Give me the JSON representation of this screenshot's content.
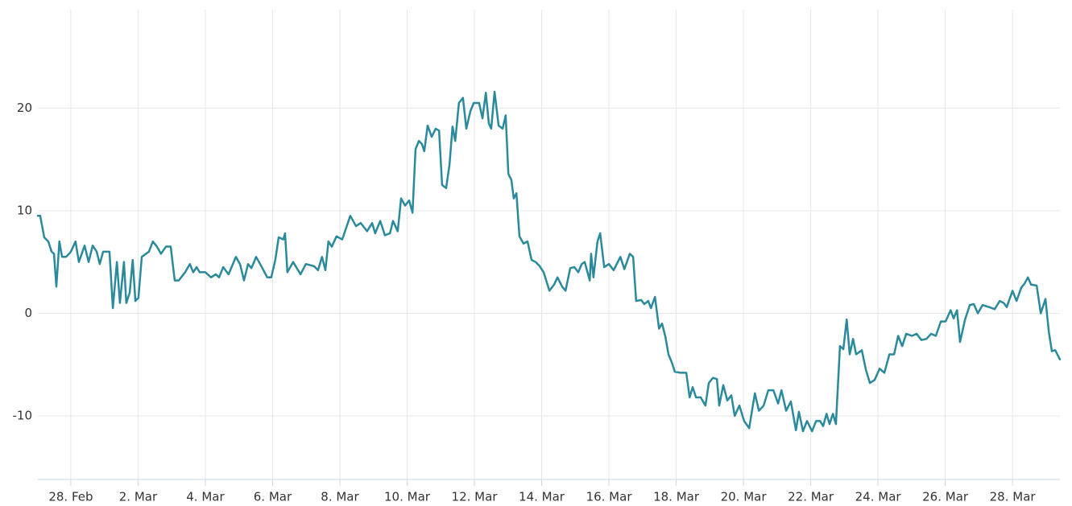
{
  "chart_data": {
    "type": "line",
    "x": [
      -0.98,
      -0.91,
      -0.79,
      -0.67,
      -0.57,
      -0.5,
      -0.43,
      -0.34,
      -0.26,
      -0.14,
      0,
      0.14,
      0.24,
      0.41,
      0.53,
      0.65,
      0.77,
      0.86,
      0.96,
      1.15,
      1.25,
      1.37,
      1.46,
      1.58,
      1.65,
      1.75,
      1.84,
      1.92,
      2.01,
      2.11,
      2.32,
      2.44,
      2.56,
      2.68,
      2.83,
      2.97,
      3.09,
      3.21,
      3.4,
      3.54,
      3.64,
      3.74,
      3.83,
      4.0,
      4.17,
      4.31,
      4.41,
      4.53,
      4.69,
      4.91,
      5.03,
      5.15,
      5.27,
      5.37,
      5.51,
      5.68,
      5.84,
      5.96,
      6.08,
      6.18,
      6.32,
      6.37,
      6.44,
      6.61,
      6.83,
      6.99,
      7.23,
      7.35,
      7.47,
      7.57,
      7.66,
      7.76,
      7.9,
      8.07,
      8.31,
      8.48,
      8.62,
      8.81,
      8.96,
      9.05,
      9.2,
      9.34,
      9.49,
      9.58,
      9.72,
      9.82,
      9.94,
      10.06,
      10.16,
      10.25,
      10.35,
      10.44,
      10.51,
      10.61,
      10.73,
      10.85,
      10.95,
      11.04,
      11.16,
      11.26,
      11.35,
      11.43,
      11.54,
      11.66,
      11.76,
      11.88,
      11.98,
      12.14,
      12.24,
      12.34,
      12.43,
      12.5,
      12.6,
      12.72,
      12.84,
      12.93,
      13.01,
      13.1,
      13.17,
      13.25,
      13.34,
      13.46,
      13.58,
      13.7,
      13.82,
      13.94,
      14.06,
      14.23,
      14.37,
      14.47,
      14.61,
      14.71,
      14.85,
      14.97,
      15.09,
      15.19,
      15.28,
      15.43,
      15.47,
      15.54,
      15.66,
      15.74,
      15.86,
      16.0,
      16.14,
      16.34,
      16.46,
      16.62,
      16.72,
      16.81,
      16.96,
      17.05,
      17.17,
      17.25,
      17.37,
      17.49,
      17.58,
      17.68,
      17.77,
      17.87,
      17.96,
      18.13,
      18.3,
      18.4,
      18.49,
      18.59,
      18.73,
      18.87,
      18.97,
      19.09,
      19.21,
      19.28,
      19.4,
      19.52,
      19.64,
      19.74,
      19.88,
      20.02,
      20.17,
      20.34,
      20.46,
      20.6,
      20.74,
      20.89,
      21.03,
      21.13,
      21.27,
      21.41,
      21.56,
      21.65,
      21.77,
      21.89,
      22.04,
      22.16,
      22.28,
      22.37,
      22.47,
      22.56,
      22.66,
      22.75,
      22.87,
      22.97,
      23.07,
      23.16,
      23.26,
      23.35,
      23.52,
      23.64,
      23.76,
      23.9,
      24.05,
      24.19,
      24.34,
      24.48,
      24.6,
      24.72,
      24.84,
      25.01,
      25.15,
      25.29,
      25.44,
      25.58,
      25.72,
      25.87,
      26.01,
      26.16,
      26.25,
      26.35,
      26.44,
      26.59,
      26.73,
      26.85,
      26.97,
      27.11,
      27.31,
      27.47,
      27.62,
      27.74,
      27.83,
      28.0,
      28.12,
      28.26,
      28.36,
      28.46,
      28.55,
      28.72,
      28.84,
      28.98,
      29.08,
      29.17,
      29.27,
      29.41
    ],
    "values": [
      9.5,
      9.5,
      7.4,
      7.0,
      6.0,
      5.8,
      2.6,
      7.0,
      5.5,
      5.5,
      6.0,
      7.0,
      5.0,
      6.6,
      5.0,
      6.6,
      6.0,
      4.8,
      6.0,
      6.0,
      0.5,
      5.0,
      1.0,
      5.0,
      1.0,
      2.0,
      5.2,
      1.2,
      1.5,
      5.5,
      6.0,
      7.0,
      6.5,
      5.8,
      6.5,
      6.5,
      3.2,
      3.2,
      4.0,
      4.8,
      4.0,
      4.5,
      4.0,
      4.0,
      3.5,
      3.8,
      3.5,
      4.5,
      3.8,
      5.5,
      4.8,
      3.2,
      4.8,
      4.4,
      5.5,
      4.5,
      3.5,
      3.5,
      5.2,
      7.4,
      7.2,
      7.8,
      4.0,
      5.0,
      3.8,
      4.8,
      4.6,
      4.2,
      5.5,
      4.2,
      7.0,
      6.5,
      7.5,
      7.2,
      9.5,
      8.5,
      8.8,
      8.0,
      8.8,
      7.8,
      9.0,
      7.6,
      7.8,
      9.0,
      8.0,
      11.2,
      10.5,
      11.0,
      9.8,
      16.0,
      16.8,
      16.5,
      15.8,
      18.3,
      17.2,
      18.0,
      17.8,
      12.5,
      12.2,
      14.5,
      18.2,
      16.8,
      20.5,
      21.0,
      18.0,
      19.7,
      20.5,
      20.5,
      19.0,
      21.5,
      18.5,
      18.0,
      21.6,
      18.3,
      18.0,
      19.3,
      13.6,
      13.0,
      11.2,
      11.7,
      7.5,
      6.8,
      7.0,
      5.2,
      5.0,
      4.6,
      4.0,
      2.2,
      2.8,
      3.5,
      2.6,
      2.2,
      4.4,
      4.5,
      4.0,
      4.8,
      5.0,
      3.2,
      5.8,
      3.5,
      7.0,
      7.8,
      4.5,
      4.8,
      4.2,
      5.5,
      4.3,
      5.8,
      5.5,
      1.2,
      1.3,
      0.9,
      1.2,
      0.5,
      1.6,
      -1.5,
      -1.0,
      -2.3,
      -4.0,
      -4.8,
      -5.7,
      -5.8,
      -5.8,
      -8.2,
      -7.2,
      -8.2,
      -8.2,
      -9.0,
      -6.8,
      -6.3,
      -6.4,
      -9.0,
      -7.0,
      -8.5,
      -8.0,
      -10.0,
      -9.0,
      -10.5,
      -11.2,
      -7.8,
      -9.5,
      -9.0,
      -7.5,
      -7.5,
      -8.8,
      -7.5,
      -9.5,
      -8.6,
      -11.4,
      -9.6,
      -11.5,
      -10.5,
      -11.5,
      -10.5,
      -10.5,
      -11.0,
      -9.8,
      -10.8,
      -9.8,
      -10.8,
      -3.2,
      -3.5,
      -0.6,
      -4.0,
      -2.5,
      -4.0,
      -3.6,
      -5.5,
      -6.8,
      -6.5,
      -5.4,
      -5.8,
      -4.0,
      -4.0,
      -2.2,
      -3.2,
      -2.0,
      -2.2,
      -2.0,
      -2.6,
      -2.5,
      -2.0,
      -2.2,
      -0.8,
      -0.8,
      0.3,
      -0.5,
      0.3,
      -2.8,
      -0.6,
      0.8,
      0.9,
      0.0,
      0.8,
      0.6,
      0.4,
      1.2,
      1.0,
      0.6,
      2.2,
      1.2,
      2.5,
      2.9,
      3.5,
      2.8,
      2.7,
      0.0,
      1.4,
      -1.8,
      -3.7,
      -3.6,
      -4.5
    ],
    "color": "#2a8a9c",
    "xlim": [
      -0.98,
      29.41
    ],
    "xticks": [
      {
        "value": 0,
        "label": "28. Feb"
      },
      {
        "value": 2,
        "label": "2. Mar"
      },
      {
        "value": 4,
        "label": "4. Mar"
      },
      {
        "value": 6,
        "label": "6. Mar"
      },
      {
        "value": 8,
        "label": "8. Mar"
      },
      {
        "value": 10,
        "label": "10. Mar"
      },
      {
        "value": 12,
        "label": "12. Mar"
      },
      {
        "value": 14,
        "label": "14. Mar"
      },
      {
        "value": 16,
        "label": "16. Mar"
      },
      {
        "value": 18,
        "label": "18. Mar"
      },
      {
        "value": 20,
        "label": "20. Mar"
      },
      {
        "value": 22,
        "label": "22. Mar"
      },
      {
        "value": 24,
        "label": "24. Mar"
      },
      {
        "value": 26,
        "label": "26. Mar"
      },
      {
        "value": 28,
        "label": "28. Mar"
      }
    ],
    "ylim": [
      -16.2,
      29.6
    ],
    "yticks": [
      -10,
      0,
      10,
      20
    ],
    "grid": true
  }
}
